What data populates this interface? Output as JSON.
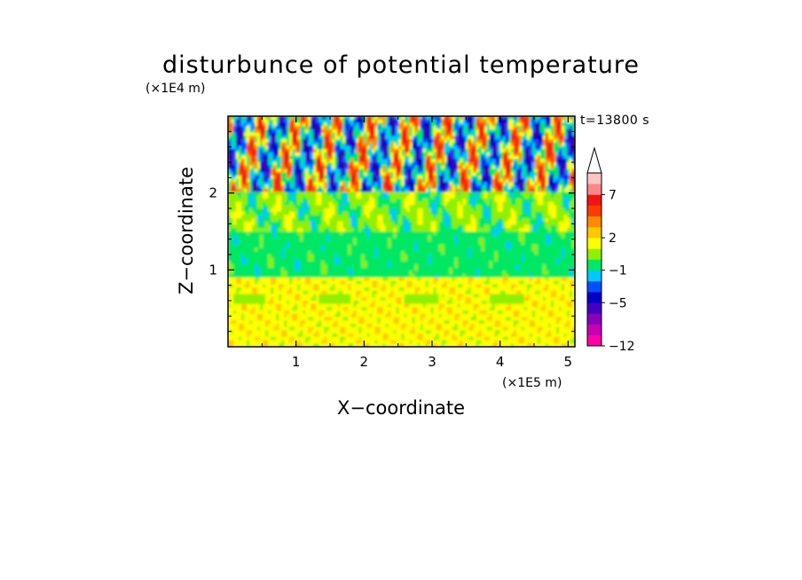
{
  "chart_data": {
    "type": "heatmap",
    "title": "disturbunce of potential temperature",
    "annotation": "t=13800 s",
    "xlabel": "X−coordinate",
    "ylabel": "Z−coordinate",
    "x_multiplier": "(×1E5 m)",
    "y_multiplier": "(×1E4 m)",
    "xlim": [
      0,
      5.1
    ],
    "ylim": [
      0,
      3.0
    ],
    "xticks": [
      "1",
      "2",
      "3",
      "4",
      "5"
    ],
    "yticks": [
      "1",
      "2"
    ],
    "colorbar": {
      "extend": "max",
      "tick_labels": [
        "7",
        "2",
        "−1",
        "−5",
        "−12"
      ],
      "colors": [
        "#ff00a8",
        "#c800b4",
        "#8800b8",
        "#4400c0",
        "#0000c8",
        "#0050ff",
        "#00c8ff",
        "#00e864",
        "#90f000",
        "#ffff00",
        "#ffc800",
        "#ff8c00",
        "#ff3c00",
        "#f01414",
        "#f88888",
        "#fcc4c4"
      ]
    },
    "field_pattern": [
      {
        "z_range": [
          0.0,
          0.9
        ],
        "dominant": "yellow / light orange",
        "value_range": [
          0,
          3
        ]
      },
      {
        "z_range": [
          0.9,
          1.5
        ],
        "dominant": "green",
        "value_range": [
          -1,
          0
        ]
      },
      {
        "z_range": [
          1.5,
          2.0
        ],
        "dominant": "yellow / green / cyan",
        "value_range": [
          -2,
          2
        ]
      },
      {
        "z_range": [
          2.0,
          3.0
        ],
        "dominant": "alternating orange and blue streaks",
        "value_range": [
          -6,
          5
        ]
      }
    ]
  }
}
